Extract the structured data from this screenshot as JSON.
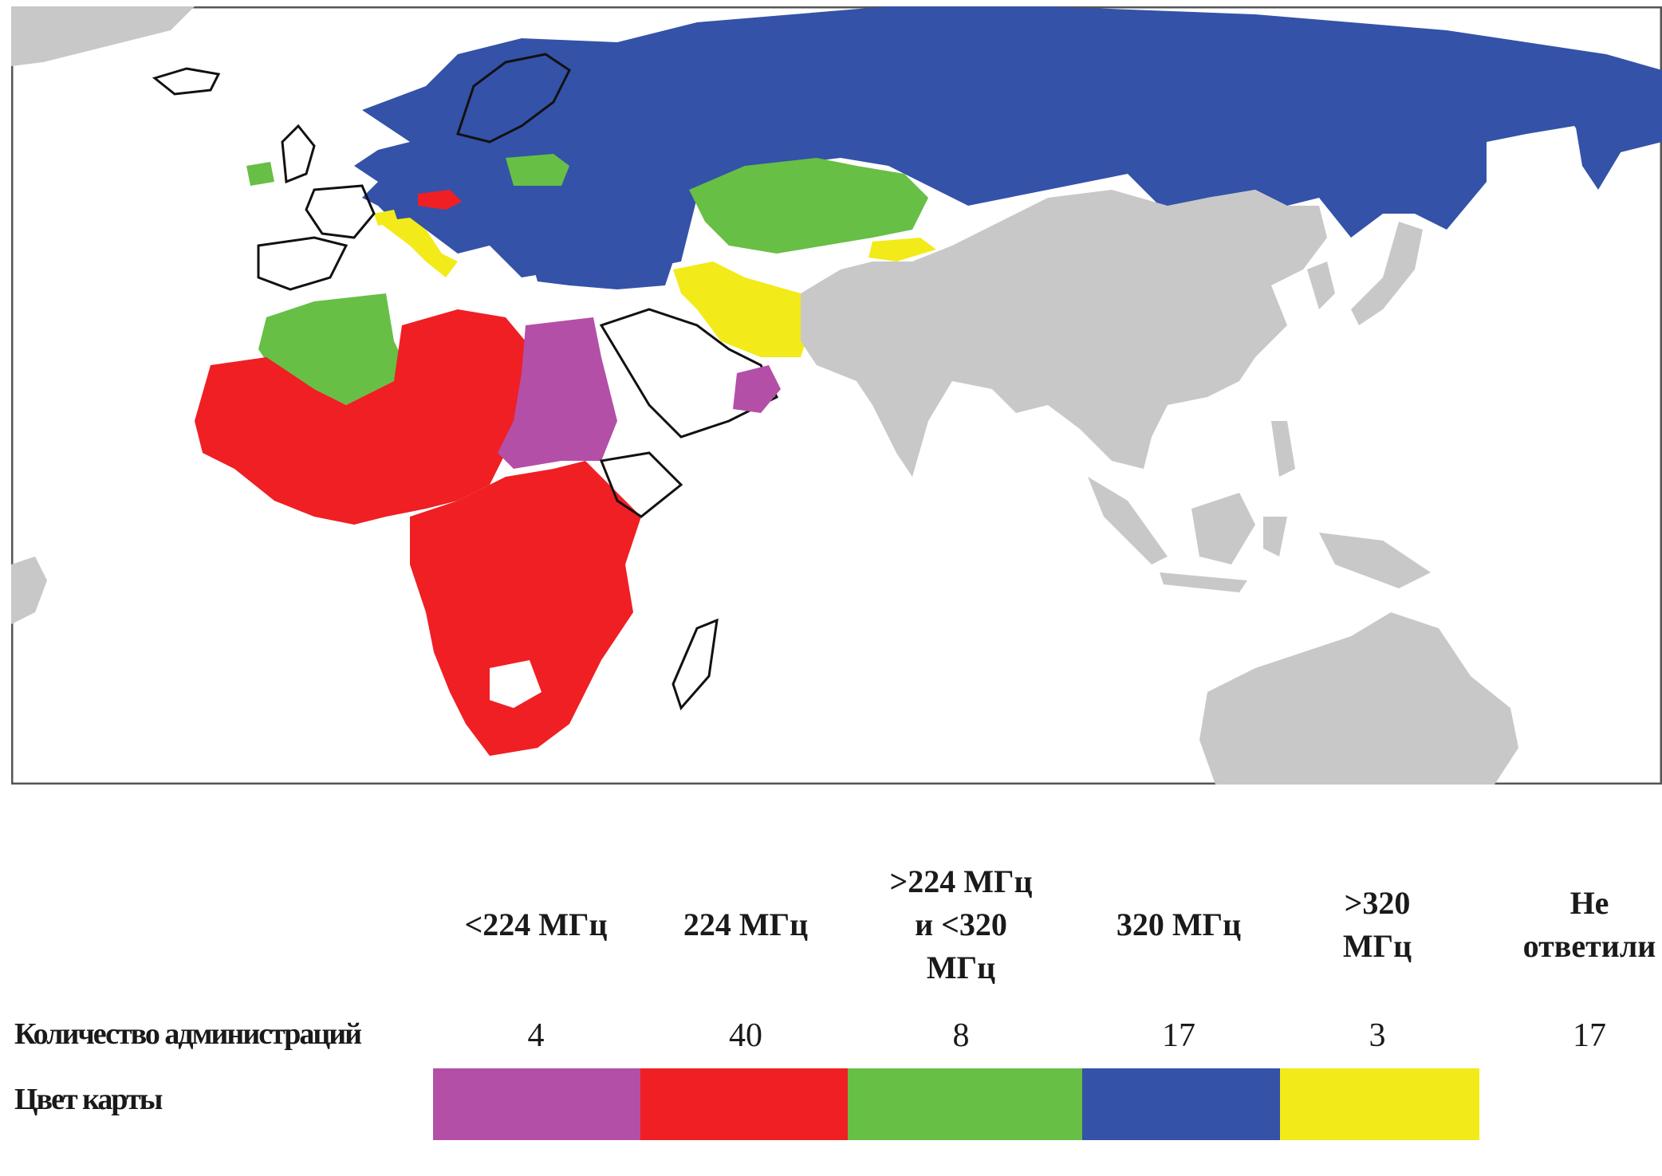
{
  "colors": {
    "purple": "#b44fa7",
    "red": "#ef1f24",
    "green": "#67bf45",
    "blue": "#3452a8",
    "yellow": "#f3ea19",
    "gray": "#c8c8c8",
    "frame": "#555555"
  },
  "legend": {
    "row_count_label": "Количество администраций",
    "row_color_label": "Цвет карты",
    "columns": [
      {
        "header": [
          "<224 МГц"
        ],
        "count": "4",
        "color": "#b44fa7"
      },
      {
        "header": [
          "224 МГц"
        ],
        "count": "40",
        "color": "#ef1f24"
      },
      {
        "header": [
          ">224 МГц",
          "и <320",
          "МГц"
        ],
        "count": "8",
        "color": "#67bf45"
      },
      {
        "header": [
          "320 МГц"
        ],
        "count": "17",
        "color": "#3452a8"
      },
      {
        "header": [
          ">320",
          "МГц"
        ],
        "count": "3",
        "color": "#f3ea19"
      },
      {
        "header": [
          "Не",
          "ответили"
        ],
        "count": "17",
        "color": ""
      }
    ]
  }
}
